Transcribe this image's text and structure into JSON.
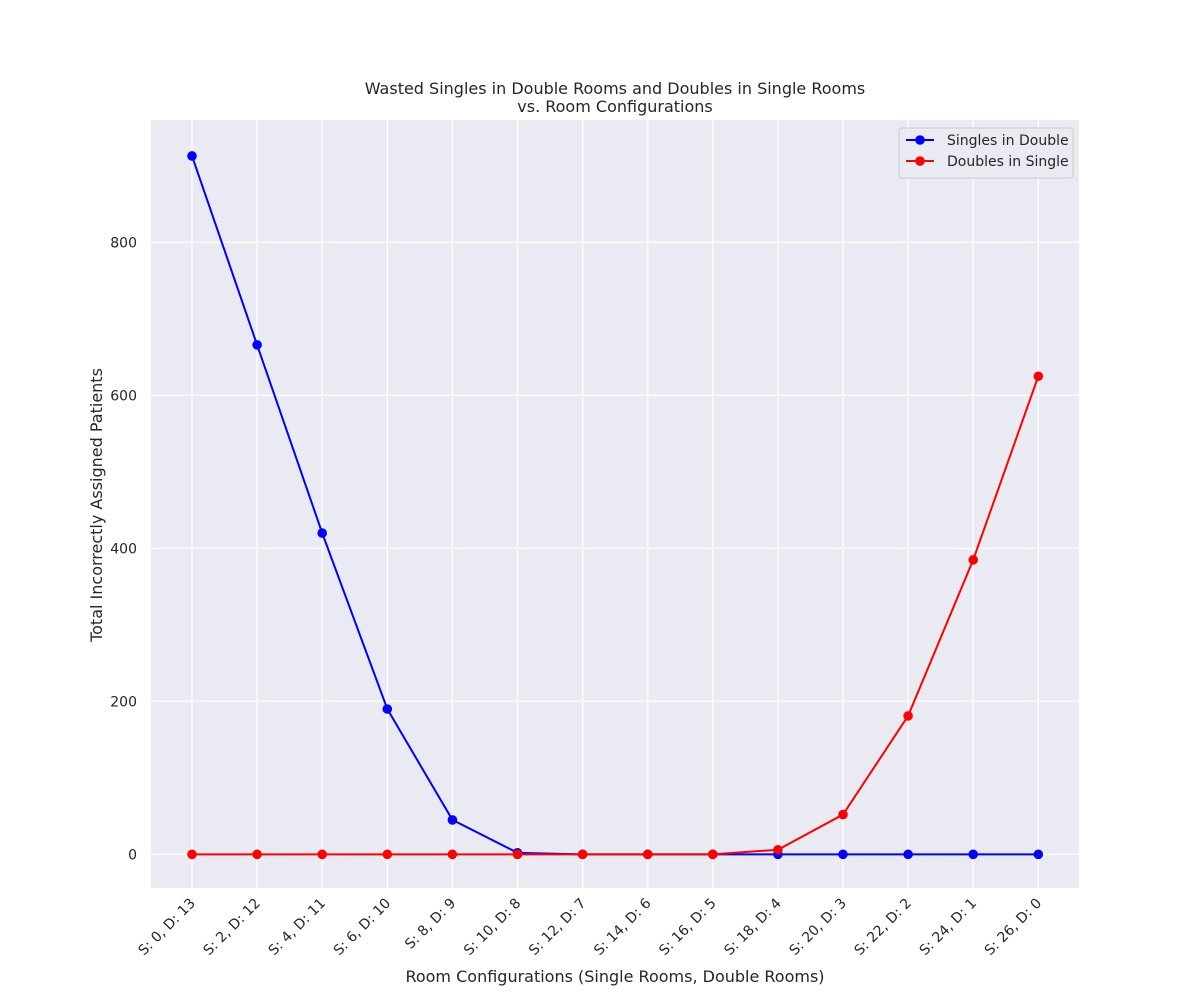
{
  "chart_data": {
    "type": "line",
    "title": "Wasted Singles in Double Rooms and Doubles in Single Rooms\nvs. Room Configurations",
    "xlabel": "Room Configurations (Single Rooms, Double Rooms)",
    "ylabel": "Total Incorrectly Assigned Patients",
    "categories": [
      "S: 0, D: 13",
      "S: 2, D: 12",
      "S: 4, D: 11",
      "S: 6, D: 10",
      "S: 8, D: 9",
      "S: 10, D: 8",
      "S: 12, D: 7",
      "S: 14, D: 6",
      "S: 16, D: 5",
      "S: 18, D: 4",
      "S: 20, D: 3",
      "S: 22, D: 2",
      "S: 24, D: 1",
      "S: 26, D: 0"
    ],
    "ylim": [
      -44,
      960
    ],
    "yticks": [
      0,
      200,
      400,
      600,
      800
    ],
    "grid": true,
    "legend_position": "top-right",
    "series": [
      {
        "name": "Singles in Double",
        "color": "#0000ff",
        "values": [
          913,
          666,
          420,
          190,
          45,
          2,
          0,
          0,
          0,
          0,
          0,
          0,
          0,
          0
        ]
      },
      {
        "name": "Doubles in Single",
        "color": "#ff0000",
        "values": [
          0,
          0,
          0,
          0,
          0,
          0,
          0,
          0,
          0,
          6,
          52,
          181,
          385,
          625
        ]
      }
    ]
  }
}
